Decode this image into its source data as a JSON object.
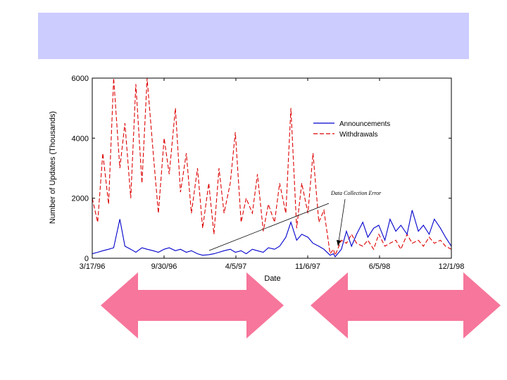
{
  "colors": {
    "title_band": "#ccccff",
    "announcements": "#0000cc",
    "withdrawals": "#dd0000",
    "arrow": "#f7769b"
  },
  "chart_data": {
    "type": "line",
    "title": "",
    "xlabel": "Date",
    "ylabel": "Number of Updates (Thousands)",
    "x_ticks": [
      "3/17/96",
      "9/30/96",
      "4/5/97",
      "11/6/97",
      "6/5/98",
      "12/1/98"
    ],
    "y_ticks": [
      "0",
      "2000",
      "4000",
      "6000"
    ],
    "ylim": [
      0,
      6000
    ],
    "xlim": [
      "1996-03-17",
      "1998-12-01"
    ],
    "legend_position": "top-right",
    "annotation": "Data Collection Error",
    "series": [
      {
        "name": "Announcements",
        "style": "solid",
        "x": [
          "1996-03-17",
          "1996-04-01",
          "1996-04-15",
          "1996-05-01",
          "1996-05-15",
          "1996-06-01",
          "1996-06-15",
          "1996-07-01",
          "1996-07-15",
          "1996-08-01",
          "1996-08-15",
          "1996-09-01",
          "1996-09-15",
          "1996-10-01",
          "1996-10-15",
          "1996-11-01",
          "1996-11-15",
          "1996-12-01",
          "1996-12-15",
          "1997-01-01",
          "1997-01-15",
          "1997-02-01",
          "1997-02-15",
          "1997-03-01",
          "1997-03-15",
          "1997-04-01",
          "1997-04-15",
          "1997-05-01",
          "1997-05-15",
          "1997-06-01",
          "1997-06-15",
          "1997-07-01",
          "1997-07-15",
          "1997-08-01",
          "1997-08-15",
          "1997-09-01",
          "1997-09-15",
          "1997-10-01",
          "1997-10-15",
          "1997-11-01",
          "1997-11-15",
          "1997-12-01",
          "1997-12-15",
          "1998-01-01",
          "1998-01-10",
          "1998-01-15",
          "1998-02-01",
          "1998-02-15",
          "1998-03-01",
          "1998-03-15",
          "1998-04-01",
          "1998-04-15",
          "1998-05-01",
          "1998-05-15",
          "1998-06-01",
          "1998-06-15",
          "1998-07-01",
          "1998-07-15",
          "1998-08-01",
          "1998-08-15",
          "1998-09-01",
          "1998-09-15",
          "1998-10-01",
          "1998-10-15",
          "1998-11-01",
          "1998-11-15",
          "1998-12-01"
        ],
        "values": [
          150,
          200,
          250,
          300,
          350,
          1300,
          400,
          300,
          200,
          350,
          300,
          250,
          200,
          300,
          350,
          250,
          300,
          200,
          250,
          150,
          100,
          120,
          150,
          200,
          250,
          300,
          200,
          250,
          150,
          300,
          250,
          200,
          350,
          300,
          400,
          700,
          1200,
          600,
          800,
          700,
          500,
          400,
          300,
          100,
          150,
          50,
          300,
          900,
          400,
          800,
          1200,
          700,
          1000,
          1100,
          600,
          1300,
          900,
          1100,
          800,
          1600,
          900,
          1100,
          800,
          1300,
          1000,
          700,
          400
        ]
      },
      {
        "name": "Withdrawals",
        "style": "dashed",
        "x": [
          "1996-03-17",
          "1996-04-01",
          "1996-04-15",
          "1996-05-01",
          "1996-05-15",
          "1996-06-01",
          "1996-06-15",
          "1996-07-01",
          "1996-07-15",
          "1996-08-01",
          "1996-08-15",
          "1996-09-01",
          "1996-09-15",
          "1996-10-01",
          "1996-10-15",
          "1996-11-01",
          "1996-11-15",
          "1996-12-01",
          "1996-12-15",
          "1997-01-01",
          "1997-01-15",
          "1997-02-01",
          "1997-02-15",
          "1997-03-01",
          "1997-03-15",
          "1997-04-01",
          "1997-04-15",
          "1997-05-01",
          "1997-05-15",
          "1997-06-01",
          "1997-06-15",
          "1997-07-01",
          "1997-07-15",
          "1997-08-01",
          "1997-08-15",
          "1997-09-01",
          "1997-09-15",
          "1997-10-01",
          "1997-10-15",
          "1997-11-01",
          "1997-11-15",
          "1997-12-01",
          "1997-12-15",
          "1998-01-01",
          "1998-01-10",
          "1998-01-15",
          "1998-02-01",
          "1998-02-15",
          "1998-03-01",
          "1998-03-15",
          "1998-04-01",
          "1998-04-15",
          "1998-05-01",
          "1998-05-15",
          "1998-06-01",
          "1998-06-15",
          "1998-07-01",
          "1998-07-15",
          "1998-08-01",
          "1998-08-15",
          "1998-09-01",
          "1998-09-15",
          "1998-10-01",
          "1998-10-15",
          "1998-11-01",
          "1998-11-15",
          "1998-12-01"
        ],
        "values": [
          2000,
          1200,
          3500,
          1800,
          6000,
          3000,
          4500,
          2000,
          5800,
          2500,
          6000,
          3500,
          1500,
          4000,
          2800,
          5000,
          2200,
          3500,
          1500,
          3000,
          1000,
          2500,
          800,
          3000,
          1500,
          2500,
          4200,
          1200,
          2000,
          1500,
          2800,
          900,
          1800,
          1200,
          2500,
          1500,
          5000,
          1000,
          2500,
          1500,
          3500,
          1200,
          1600,
          150,
          300,
          100,
          600,
          500,
          800,
          500,
          400,
          600,
          300,
          800,
          400,
          500,
          600,
          300,
          800,
          500,
          600,
          400,
          700,
          500,
          600,
          400,
          300
        ]
      }
    ]
  }
}
